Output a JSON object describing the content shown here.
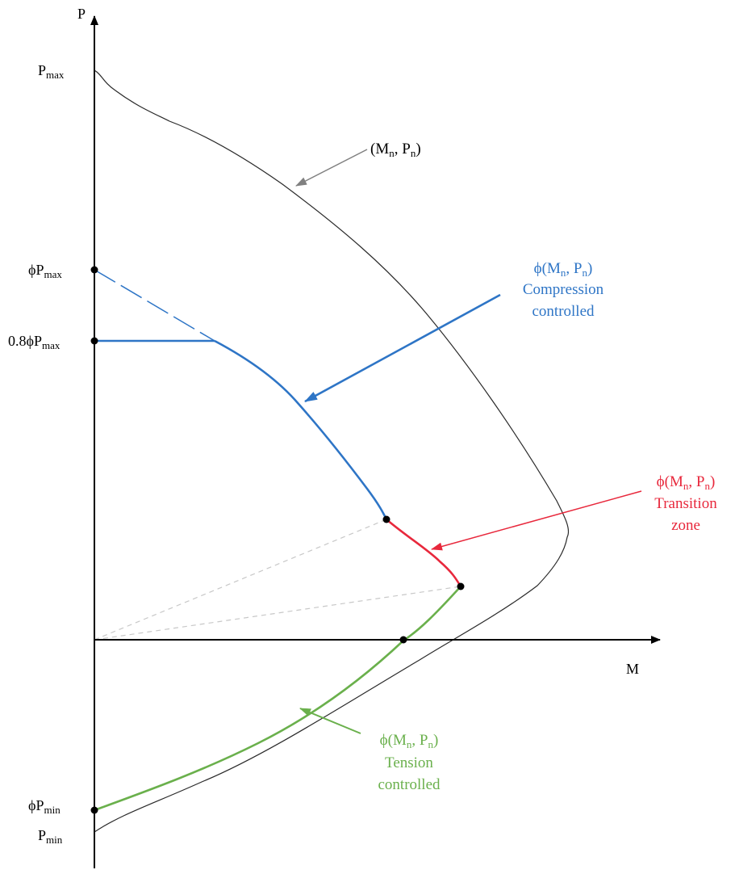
{
  "axes": {
    "vertical_label": "P",
    "horizontal_label": "M"
  },
  "vertical_axis_labels": {
    "p_max": {
      "base": "P",
      "subscript": "max"
    },
    "phi_p_max": {
      "prefix": "ϕP",
      "subscript": "max"
    },
    "point_eight_phi_p_max": {
      "prefix": "0.8ϕP",
      "subscript": "max"
    },
    "phi_p_min": {
      "prefix": "ϕP",
      "subscript": "min"
    },
    "p_min": {
      "base": "P",
      "subscript": "min"
    }
  },
  "annotations": {
    "nominal": {
      "open": "(M",
      "sub1": "n",
      "mid": ", P",
      "sub2": "n",
      "close": ")"
    },
    "compression": {
      "open": "ϕ(M",
      "sub1": "n",
      "mid": ", P",
      "sub2": "n",
      "close": ")",
      "line2": "Compression",
      "line3": "controlled"
    },
    "transition": {
      "open": "ϕ(M",
      "sub1": "n",
      "mid": ", P",
      "sub2": "n",
      "close": ")",
      "line2": "Transition",
      "line3": "zone"
    },
    "tension": {
      "open": "ϕ(M",
      "sub1": "n",
      "mid": ", P",
      "sub2": "n",
      "close": ")",
      "line2": "Tension",
      "line3": "controlled"
    }
  },
  "colors": {
    "axis": "#000000",
    "nominal_curve": "#2a2a2a",
    "compression": "#2e75c6",
    "transition": "#e8283c",
    "tension": "#6ab04c",
    "guide_lines": "#c8c8c8",
    "nominal_arrow": "#808080"
  }
}
